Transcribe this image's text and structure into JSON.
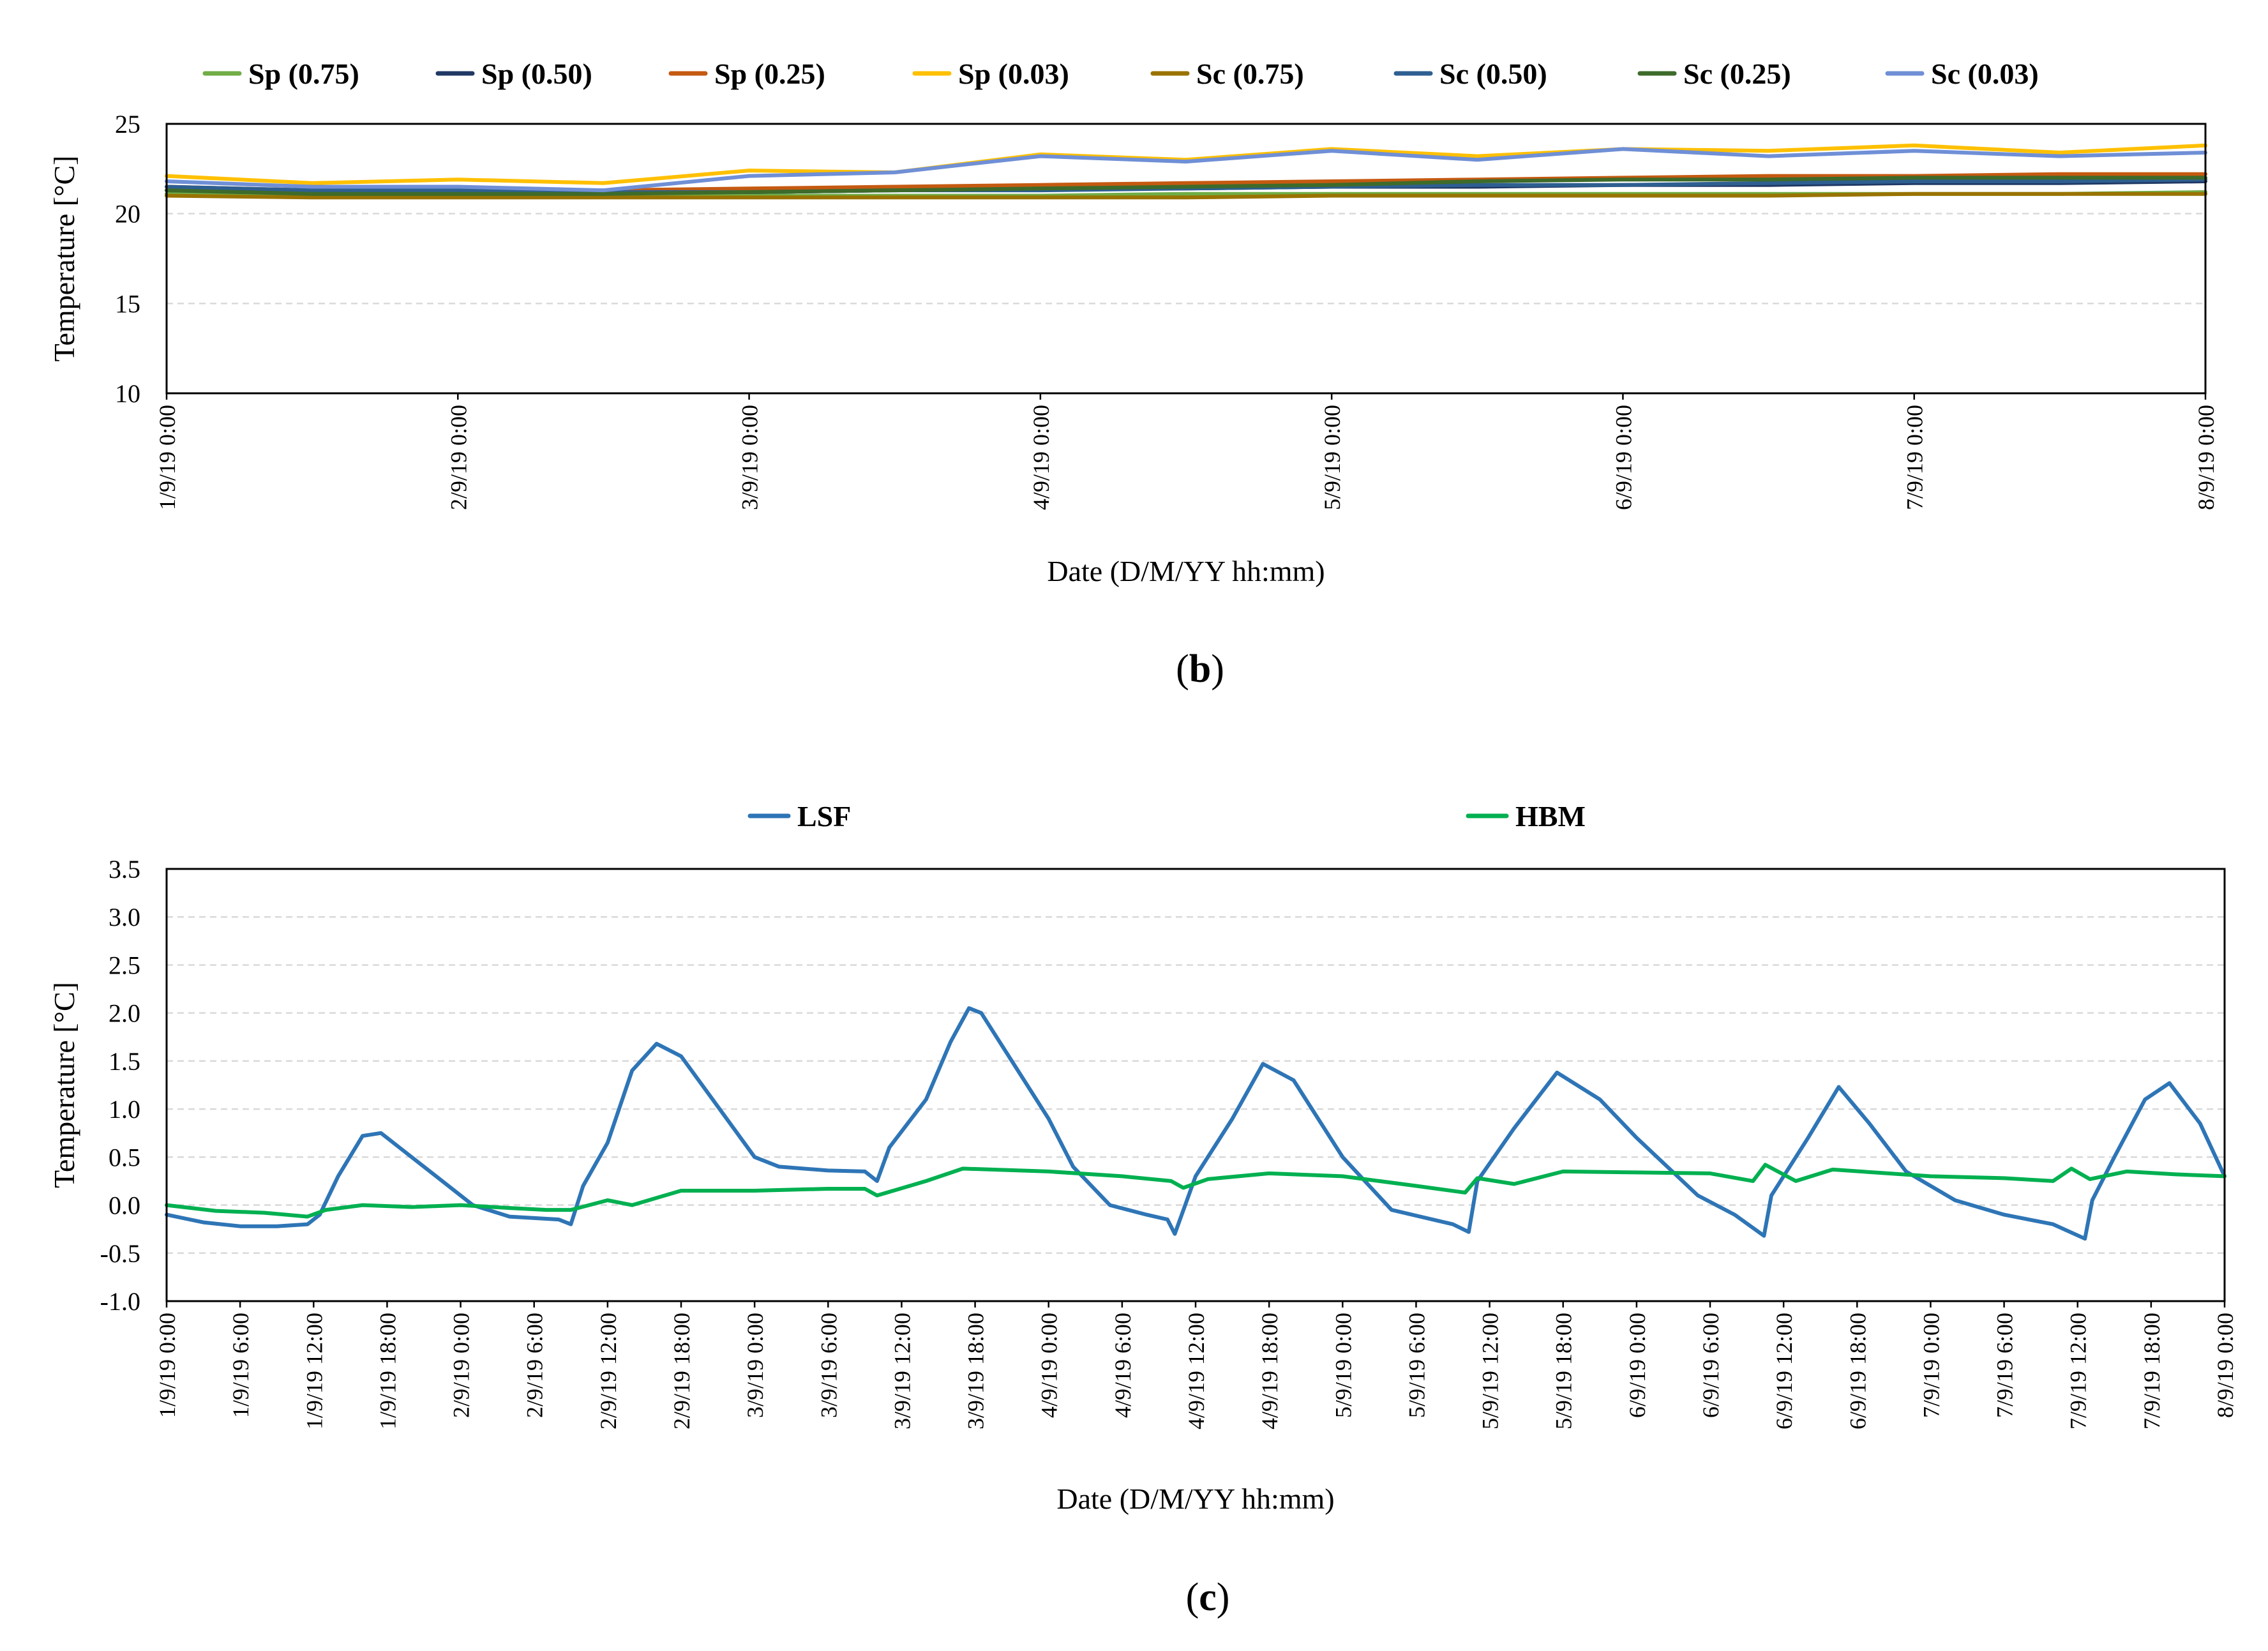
{
  "chart_data": [
    {
      "id": "b",
      "type": "line",
      "caption_letter": "b",
      "caption_open": "(",
      "caption_close": ")",
      "xlabel": "Date (D/M/YY hh:mm)",
      "ylabel": "Temperature [°C]",
      "ylim": [
        10,
        25
      ],
      "yticks": [
        10,
        15,
        20,
        25
      ],
      "xlim_hours": [
        0,
        168
      ],
      "xtick_hours": [
        0,
        24,
        48,
        72,
        96,
        120,
        144,
        168
      ],
      "xtick_labels": [
        "1/9/19 0:00",
        "2/9/19 0:00",
        "3/9/19 0:00",
        "4/9/19 0:00",
        "5/9/19 0:00",
        "6/9/19 0:00",
        "7/9/19 0:00",
        "8/9/19 0:00"
      ],
      "grid": "horizontal dashed",
      "legend_position": "top",
      "x_hours": [
        0,
        12,
        24,
        36,
        48,
        60,
        72,
        84,
        96,
        108,
        120,
        132,
        144,
        156,
        168
      ],
      "series": [
        {
          "name": "Sp (0.75)",
          "color": "#70AD47",
          "values": [
            21.1,
            21.0,
            21.0,
            21.0,
            21.0,
            21.0,
            21.0,
            21.1,
            21.1,
            21.1,
            21.1,
            21.1,
            21.1,
            21.1,
            21.2
          ]
        },
        {
          "name": "Sp (0.50)",
          "color": "#203864",
          "values": [
            21.3,
            21.2,
            21.2,
            21.2,
            21.2,
            21.3,
            21.4,
            21.4,
            21.5,
            21.5,
            21.6,
            21.6,
            21.7,
            21.7,
            21.8
          ]
        },
        {
          "name": "Sp (0.25)",
          "color": "#C55A11",
          "values": [
            21.5,
            21.3,
            21.3,
            21.3,
            21.4,
            21.5,
            21.6,
            21.7,
            21.8,
            21.9,
            22.0,
            22.1,
            22.1,
            22.2,
            22.2
          ]
        },
        {
          "name": "Sp (0.03)",
          "color": "#FFC000",
          "values": [
            22.1,
            21.7,
            21.9,
            21.7,
            22.4,
            22.3,
            23.3,
            23.0,
            23.6,
            23.2,
            23.6,
            23.5,
            23.8,
            23.4,
            23.8
          ]
        },
        {
          "name": "Sc (0.75)",
          "color": "#997300",
          "values": [
            21.0,
            20.9,
            20.9,
            20.9,
            20.9,
            20.9,
            20.9,
            20.9,
            21.0,
            21.0,
            21.0,
            21.0,
            21.1,
            21.1,
            21.1
          ]
        },
        {
          "name": "Sc (0.50)",
          "color": "#2E5F91",
          "values": [
            21.5,
            21.3,
            21.3,
            21.2,
            21.2,
            21.3,
            21.3,
            21.4,
            21.5,
            21.6,
            21.6,
            21.7,
            21.8,
            21.8,
            21.9
          ]
        },
        {
          "name": "Sc (0.25)",
          "color": "#3E6B2A",
          "values": [
            21.3,
            21.1,
            21.1,
            21.1,
            21.2,
            21.3,
            21.4,
            21.5,
            21.6,
            21.8,
            21.9,
            21.9,
            22.0,
            22.0,
            22.0
          ]
        },
        {
          "name": "Sc (0.03)",
          "color": "#6F8FD6",
          "values": [
            21.8,
            21.5,
            21.5,
            21.3,
            22.1,
            22.3,
            23.2,
            22.9,
            23.5,
            23.0,
            23.6,
            23.2,
            23.5,
            23.2,
            23.4
          ]
        }
      ]
    },
    {
      "id": "c",
      "type": "line",
      "caption_letter": "c",
      "caption_open": "(",
      "caption_close": ")",
      "xlabel": "Date (D/M/YY hh:mm)",
      "ylabel": "Temperature [°C]",
      "ylim": [
        -1.0,
        3.5
      ],
      "yticks": [
        -1.0,
        -0.5,
        0.0,
        0.5,
        1.0,
        1.5,
        2.0,
        2.5,
        3.0,
        3.5
      ],
      "ytick_labels": [
        "-1.0",
        "-0.5",
        "0.0",
        "0.5",
        "1.0",
        "1.5",
        "2.0",
        "2.5",
        "3.0",
        "3.5"
      ],
      "xlim_hours": [
        0,
        168
      ],
      "xtick_hours": [
        0,
        6,
        12,
        18,
        24,
        30,
        36,
        42,
        48,
        54,
        60,
        66,
        72,
        78,
        84,
        90,
        96,
        102,
        108,
        114,
        120,
        126,
        132,
        138,
        144,
        150,
        156,
        162,
        168
      ],
      "xtick_labels": [
        "1/9/19 0:00",
        "1/9/19 6:00",
        "1/9/19 12:00",
        "1/9/19 18:00",
        "2/9/19 0:00",
        "2/9/19 6:00",
        "2/9/19 12:00",
        "2/9/19 18:00",
        "3/9/19 0:00",
        "3/9/19 6:00",
        "3/9/19 12:00",
        "3/9/19 18:00",
        "4/9/19 0:00",
        "4/9/19 6:00",
        "4/9/19 12:00",
        "4/9/19 18:00",
        "5/9/19 0:00",
        "5/9/19 6:00",
        "5/9/19 12:00",
        "5/9/19 18:00",
        "6/9/19 0:00",
        "6/9/19 6:00",
        "6/9/19 12:00",
        "6/9/19 18:00",
        "7/9/19 0:00",
        "7/9/19 6:00",
        "7/9/19 12:00",
        "7/9/19 18:00",
        "8/9/19 0:00"
      ],
      "grid": "horizontal dashed",
      "legend_position": "top",
      "series": [
        {
          "name": "LSF",
          "color": "#2E75B6",
          "x_hours": [
            0,
            3,
            6,
            9,
            11.5,
            12.5,
            14,
            16,
            17.5,
            19,
            22,
            25,
            28,
            32,
            33,
            34,
            36,
            38,
            40,
            42,
            44,
            48,
            50,
            54,
            57,
            58,
            59,
            62,
            64,
            65.5,
            66.5,
            69,
            72,
            74,
            77,
            80,
            81.7,
            82.3,
            84,
            87,
            89.5,
            92,
            96,
            100,
            105,
            106.3,
            107,
            110,
            113.5,
            117,
            120,
            125,
            128,
            130.4,
            131,
            134,
            136.5,
            139,
            142,
            146,
            150,
            154,
            156.6,
            157.2,
            159,
            161.5,
            163.5,
            166,
            168
          ],
          "values": [
            -0.1,
            -0.18,
            -0.22,
            -0.22,
            -0.2,
            -0.1,
            0.3,
            0.72,
            0.75,
            0.6,
            0.3,
            0.0,
            -0.12,
            -0.15,
            -0.2,
            0.2,
            0.65,
            1.4,
            1.68,
            1.55,
            1.2,
            0.5,
            0.4,
            0.36,
            0.35,
            0.25,
            0.6,
            1.1,
            1.7,
            2.05,
            2.0,
            1.5,
            0.9,
            0.4,
            0.0,
            -0.1,
            -0.15,
            -0.3,
            0.3,
            0.9,
            1.47,
            1.3,
            0.5,
            -0.05,
            -0.2,
            -0.28,
            0.25,
            0.8,
            1.38,
            1.1,
            0.7,
            0.1,
            -0.1,
            -0.32,
            0.1,
            0.7,
            1.23,
            0.85,
            0.35,
            0.05,
            -0.1,
            -0.2,
            -0.35,
            0.05,
            0.5,
            1.1,
            1.27,
            0.85,
            0.3
          ]
        },
        {
          "name": "HBM",
          "color": "#00B050",
          "x_hours": [
            0,
            4,
            8,
            11.5,
            13,
            16,
            20,
            24,
            28,
            31,
            33,
            36,
            38,
            42,
            48,
            54,
            57,
            58,
            62,
            65,
            72,
            78,
            82,
            83,
            85,
            90,
            96,
            102,
            106,
            107,
            110,
            114,
            120,
            126,
            129.5,
            130.5,
            133,
            136,
            144,
            150,
            154,
            155.5,
            157,
            160,
            164,
            168
          ],
          "values": [
            0.0,
            -0.06,
            -0.08,
            -0.12,
            -0.05,
            0.0,
            -0.02,
            0.0,
            -0.03,
            -0.05,
            -0.05,
            0.05,
            0.0,
            0.15,
            0.15,
            0.17,
            0.17,
            0.1,
            0.25,
            0.38,
            0.35,
            0.3,
            0.25,
            0.18,
            0.27,
            0.33,
            0.3,
            0.2,
            0.13,
            0.28,
            0.22,
            0.35,
            0.34,
            0.33,
            0.25,
            0.42,
            0.25,
            0.37,
            0.3,
            0.28,
            0.25,
            0.38,
            0.27,
            0.35,
            0.32,
            0.3
          ]
        }
      ]
    }
  ]
}
